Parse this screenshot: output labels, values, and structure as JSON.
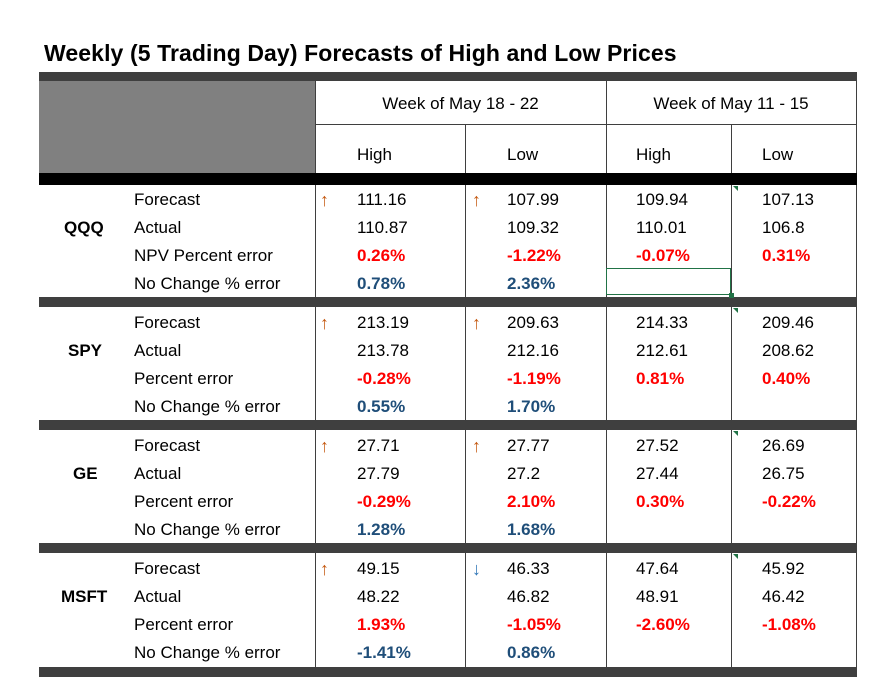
{
  "title": "Weekly (5 Trading Day) Forecasts of High and Low Prices",
  "headers": {
    "week1": "Week of May 18 - 22",
    "week2": "Week of May 11 - 15",
    "high1": "High",
    "low1": "Low",
    "high2": "High",
    "low2": "Low"
  },
  "colors": {
    "error_red": "#ff0000",
    "nochange_blue": "#1f4e79",
    "arrow_up": "#c55a11",
    "arrow_down": "#2e75b6",
    "header_gray": "#808080",
    "bar_dark": "#3f3f3f"
  },
  "groups": [
    {
      "ticker": "QQQ",
      "rows": [
        {
          "label": "Forecast",
          "high1": "111.16",
          "low1": "107.99",
          "high2": "109.94",
          "low2": "107.13",
          "arrow_high": "up-arrow-icon",
          "arrow_low": "up-arrow-icon"
        },
        {
          "label": "Actual",
          "high1": "110.87",
          "low1": "109.32",
          "high2": "110.01",
          "low2": "106.8"
        },
        {
          "label": "NPV Percent error",
          "high1": "0.26%",
          "low1": "-1.22%",
          "high2": "-0.07%",
          "low2": "0.31%"
        },
        {
          "label": "No Change % error",
          "high1": "0.78%",
          "low1": "2.36%",
          "high2": "",
          "low2": ""
        }
      ]
    },
    {
      "ticker": "SPY",
      "rows": [
        {
          "label": "Forecast",
          "high1": "213.19",
          "low1": "209.63",
          "high2": "214.33",
          "low2": "209.46",
          "arrow_high": "up-arrow-icon",
          "arrow_low": "up-arrow-icon"
        },
        {
          "label": "Actual",
          "high1": "213.78",
          "low1": "212.16",
          "high2": "212.61",
          "low2": "208.62"
        },
        {
          "label": "Percent error",
          "high1": "-0.28%",
          "low1": "-1.19%",
          "high2": "0.81%",
          "low2": "0.40%"
        },
        {
          "label": "No Change % error",
          "high1": "0.55%",
          "low1": "1.70%",
          "high2": "",
          "low2": ""
        }
      ]
    },
    {
      "ticker": "GE",
      "rows": [
        {
          "label": "Forecast",
          "high1": "27.71",
          "low1": "27.77",
          "high2": "27.52",
          "low2": "26.69",
          "arrow_high": "up-arrow-icon",
          "arrow_low": "up-arrow-icon"
        },
        {
          "label": "Actual",
          "high1": "27.79",
          "low1": "27.2",
          "high2": "27.44",
          "low2": "26.75"
        },
        {
          "label": "Percent error",
          "high1": "-0.29%",
          "low1": "2.10%",
          "high2": "0.30%",
          "low2": "-0.22%"
        },
        {
          "label": "No Change % error",
          "high1": "1.28%",
          "low1": "1.68%",
          "high2": "",
          "low2": ""
        }
      ]
    },
    {
      "ticker": "MSFT",
      "rows": [
        {
          "label": "Forecast",
          "high1": "49.15",
          "low1": "46.33",
          "high2": "47.64",
          "low2": "45.92",
          "arrow_high": "up-arrow-icon",
          "arrow_low": "down-arrow-icon"
        },
        {
          "label": "Actual",
          "high1": "48.22",
          "low1": "46.82",
          "high2": "48.91",
          "low2": "46.42"
        },
        {
          "label": "Percent error",
          "high1": "1.93%",
          "low1": "-1.05%",
          "high2": "-2.60%",
          "low2": "-1.08%"
        },
        {
          "label": "No Change % error",
          "high1": "-1.41%",
          "low1": "0.86%",
          "high2": "",
          "low2": ""
        }
      ]
    }
  ]
}
